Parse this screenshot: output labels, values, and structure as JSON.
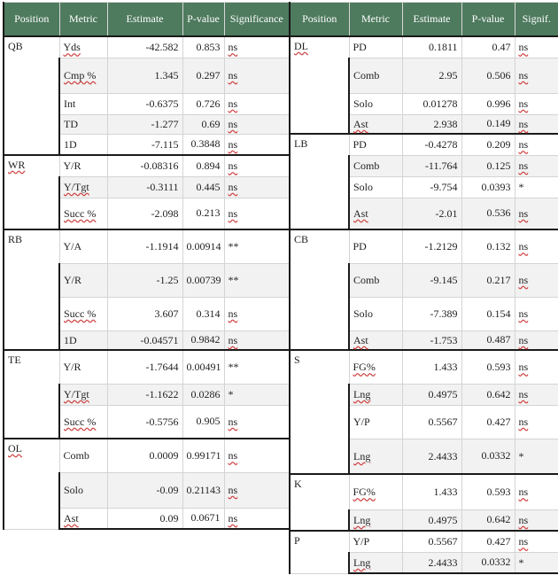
{
  "left": {
    "headers": [
      "Position",
      "Metric",
      "Estimate",
      "P-value",
      "Significance"
    ],
    "rows": [
      {
        "pos": "QB",
        "metric": "Yds",
        "est": "-42.582",
        "p": "0.853",
        "sig": "ns",
        "start": true,
        "span": 5,
        "h": 24,
        "ms": true
      },
      {
        "metric": "Cmp %",
        "est": "1.345",
        "p": "0.297",
        "sig": "ns",
        "h": 40,
        "ms": true
      },
      {
        "metric": "Int",
        "est": "-0.6375",
        "p": "0.726",
        "sig": "ns",
        "h": 24
      },
      {
        "metric": "TD",
        "est": "-1.277",
        "p": "0.69",
        "sig": "ns",
        "h": 22
      },
      {
        "metric": "1D",
        "est": "-7.115",
        "p": "0.3848",
        "sig": "ns",
        "h": 24
      },
      {
        "pos": "WR",
        "metric": "Y/R",
        "est": "-0.08316",
        "p": "0.894",
        "sig": "ns",
        "start": true,
        "span": 3,
        "h": 24,
        "ps": true
      },
      {
        "metric": "Y/Tgt",
        "est": "-0.3111",
        "p": "0.445",
        "sig": "ns",
        "h": 24,
        "ms": true
      },
      {
        "metric": "Succ %",
        "est": "-2.098",
        "p": "0.213",
        "sig": "ns",
        "h": 36,
        "ms": true
      },
      {
        "pos": "RB",
        "metric": "Y/A",
        "est": "-1.1914",
        "p": "0.00914",
        "sig": "**",
        "start": true,
        "span": 4,
        "h": 38
      },
      {
        "metric": "Y/R",
        "est": "-1.25",
        "p": "0.00739",
        "sig": "**",
        "h": 38
      },
      {
        "metric": "Succ %",
        "est": "3.607",
        "p": "0.314",
        "sig": "ns",
        "h": 38,
        "ms": true
      },
      {
        "metric": "1D",
        "est": "-0.04571",
        "p": "0.9842",
        "sig": "ns",
        "h": 22
      },
      {
        "pos": "TE",
        "metric": "Y/R",
        "est": "-1.7644",
        "p": "0.00491",
        "sig": "**",
        "start": true,
        "span": 3,
        "h": 38
      },
      {
        "metric": "Y/Tgt",
        "est": "-1.1622",
        "p": "0.0286",
        "sig": "*",
        "h": 24,
        "ms": true
      },
      {
        "metric": "Succ %",
        "est": "-0.5756",
        "p": "0.905",
        "sig": "ns",
        "h": 38,
        "ms": true
      },
      {
        "pos": "OL",
        "metric": "Comb",
        "est": "0.0009",
        "p": "0.99171",
        "sig": "ns",
        "start": true,
        "span": 3,
        "h": 38,
        "ps": true
      },
      {
        "metric": "Solo",
        "est": "-0.09",
        "p": "0.21143",
        "sig": "ns",
        "h": 40
      },
      {
        "metric": "Ast",
        "est": "0.09",
        "p": "0.0671",
        "sig": "ns",
        "h": 24,
        "ms": true
      }
    ]
  },
  "right": {
    "headers": [
      "Position",
      "Metric",
      "Estimate",
      "P-value",
      "Signif."
    ],
    "rows": [
      {
        "pos": "DL",
        "metric": "PD",
        "est": "0.1811",
        "p": "0.47",
        "sig": "ns",
        "start": true,
        "span": 4,
        "h": 24,
        "ps": true
      },
      {
        "metric": "Comb",
        "est": "2.95",
        "p": "0.506",
        "sig": "ns",
        "h": 40
      },
      {
        "metric": "Solo",
        "est": "0.01278",
        "p": "0.996",
        "sig": "ns",
        "h": 24
      },
      {
        "metric": "Ast",
        "est": "2.938",
        "p": "0.149",
        "sig": "ns",
        "h": 22,
        "ms": true
      },
      {
        "pos": "LB",
        "metric": "PD",
        "est": "-0.4278",
        "p": "0.209",
        "sig": "ns",
        "start": true,
        "span": 4,
        "h": 24
      },
      {
        "metric": "Comb",
        "est": "-11.764",
        "p": "0.125",
        "sig": "ns",
        "h": 24
      },
      {
        "metric": "Solo",
        "est": "-9.754",
        "p": "0.0393",
        "sig": "*",
        "h": 24
      },
      {
        "metric": "Ast",
        "est": "-2.01",
        "p": "0.536",
        "sig": "ns",
        "h": 36,
        "ms": true
      },
      {
        "pos": "CB",
        "metric": "PD",
        "est": "-1.2129",
        "p": "0.132",
        "sig": "ns",
        "start": true,
        "span": 4,
        "h": 38
      },
      {
        "metric": "Comb",
        "est": "-9.145",
        "p": "0.217",
        "sig": "ns",
        "h": 38
      },
      {
        "metric": "Solo",
        "est": "-7.389",
        "p": "0.154",
        "sig": "ns",
        "h": 38
      },
      {
        "metric": "Ast",
        "est": "-1.753",
        "p": "0.487",
        "sig": "ns",
        "h": 22,
        "ms": true
      },
      {
        "pos": "S",
        "metric": "FG%",
        "est": "1.433",
        "p": "0.593",
        "sig": "ns",
        "start": true,
        "span": 4,
        "h": 38,
        "ms": true
      },
      {
        "metric": "Lng",
        "est": "0.4975",
        "p": "0.642",
        "sig": "ns",
        "h": 24,
        "ms": true
      },
      {
        "metric": "Y/P",
        "est": "0.5567",
        "p": "0.427",
        "sig": "ns",
        "h": 38
      },
      {
        "metric": "Lng",
        "est": "2.4433",
        "p": "0.0332",
        "sig": "*",
        "h": 40,
        "ms": true
      },
      {
        "pos": "K",
        "metric": "FG%",
        "est": "1.433",
        "p": "0.593",
        "sig": "ns",
        "start": true,
        "span": 2,
        "h": 40,
        "ms": true
      },
      {
        "metric": "Lng",
        "est": "0.4975",
        "p": "0.642",
        "sig": "ns",
        "h": 24,
        "ms": true
      },
      {
        "pos": "P",
        "metric": "Y/P",
        "est": "0.5567",
        "p": "0.427",
        "sig": "ns",
        "start": true,
        "span": 2,
        "h": 24
      },
      {
        "metric": "Lng",
        "est": "2.4433",
        "p": "0.0332",
        "sig": "*",
        "h": 24,
        "ms": true
      }
    ]
  }
}
